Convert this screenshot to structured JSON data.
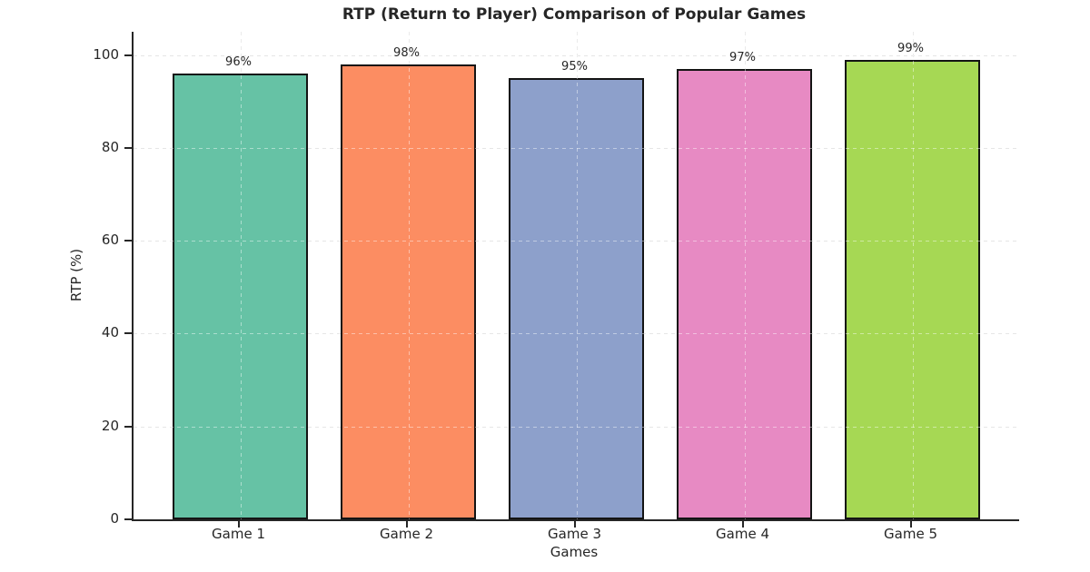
{
  "chart_data": {
    "type": "bar",
    "title": "RTP (Return to Player) Comparison of Popular Games",
    "xlabel": "Games",
    "ylabel": "RTP (%)",
    "categories": [
      "Game 1",
      "Game 2",
      "Game 3",
      "Game 4",
      "Game 5"
    ],
    "values": [
      96,
      98,
      95,
      97,
      99
    ],
    "bar_labels": [
      "96%",
      "98%",
      "95%",
      "97%",
      "99%"
    ],
    "bar_colors": [
      "#66c2a5",
      "#fc8d62",
      "#8da0cb",
      "#e78ac3",
      "#a6d854"
    ],
    "bar_edge_color": "#141414",
    "yticks": [
      0,
      20,
      40,
      60,
      80,
      100
    ],
    "ylim": [
      0,
      105
    ],
    "grid": "dashed, horizontal and vertical, light gray",
    "legend_position": "none",
    "spines": "left and bottom only, dark"
  }
}
